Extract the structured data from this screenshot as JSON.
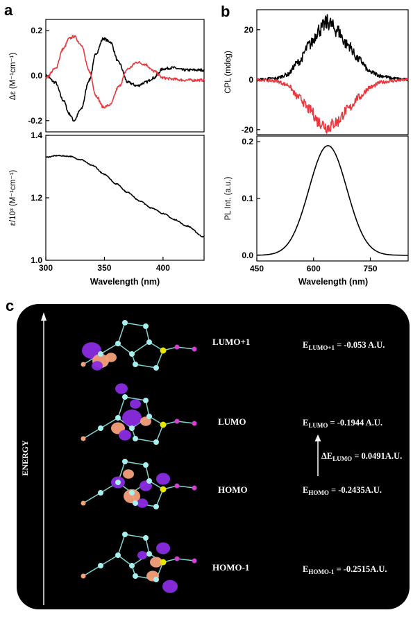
{
  "panels": {
    "a": "a",
    "b": "b",
    "c": "c"
  },
  "chart_data": [
    {
      "id": "cd",
      "type": "line",
      "ylabel": "Δε (M⁻¹cm⁻¹)",
      "xlim": [
        300,
        435
      ],
      "ylim": [
        -0.25,
        0.25
      ],
      "yticks": [
        "0.2",
        "0.0",
        "-0.2"
      ],
      "ytick_values": [
        0.2,
        0.0,
        -0.2
      ],
      "series": [
        {
          "color": "#000000",
          "x": [
            300,
            308,
            315,
            320,
            324,
            330,
            337,
            343,
            349,
            355,
            362,
            370,
            378,
            385,
            392,
            400,
            408,
            418,
            435
          ],
          "y": [
            0.0,
            -0.03,
            -0.11,
            -0.17,
            -0.2,
            -0.15,
            -0.02,
            0.1,
            0.165,
            0.15,
            0.06,
            -0.03,
            -0.045,
            -0.03,
            -0.01,
            0.03,
            0.035,
            0.025,
            0.025
          ]
        },
        {
          "color": "#e8383d",
          "x": [
            300,
            308,
            315,
            320,
            324,
            330,
            337,
            343,
            349,
            355,
            362,
            370,
            378,
            385,
            392,
            400,
            408,
            418,
            435
          ],
          "y": [
            -0.01,
            0.03,
            0.12,
            0.165,
            0.175,
            0.14,
            0.02,
            -0.09,
            -0.14,
            -0.13,
            -0.05,
            0.03,
            0.06,
            0.05,
            0.02,
            -0.01,
            -0.015,
            -0.02,
            -0.02
          ]
        }
      ]
    },
    {
      "id": "abs",
      "type": "line",
      "xlabel": "Wavelength (nm)",
      "ylabel": "ε/10³ (M⁻¹cm⁻¹)",
      "xlim": [
        300,
        435
      ],
      "ylim": [
        1.0,
        1.4
      ],
      "xticks": [
        "300",
        "350",
        "400"
      ],
      "xtick_values": [
        300,
        350,
        400
      ],
      "yticks": [
        "1.4",
        "1.2",
        "1.0"
      ],
      "ytick_values": [
        1.4,
        1.2,
        1.0
      ],
      "series": [
        {
          "color": "#000000",
          "x": [
            300,
            310,
            320,
            330,
            340,
            350,
            360,
            370,
            380,
            390,
            400,
            410,
            420,
            435
          ],
          "y": [
            1.33,
            1.335,
            1.333,
            1.322,
            1.303,
            1.275,
            1.245,
            1.217,
            1.19,
            1.168,
            1.15,
            1.13,
            1.11,
            1.075
          ]
        }
      ]
    },
    {
      "id": "cpl",
      "type": "line",
      "ylabel": "CPL (mdeg)",
      "xlim": [
        450,
        850
      ],
      "ylim": [
        -22,
        28
      ],
      "yticks": [
        "20",
        "0",
        "-20"
      ],
      "ytick_values": [
        20,
        0,
        -20
      ],
      "series": [
        {
          "color": "#000000",
          "x": [
            450,
            500,
            530,
            560,
            590,
            615,
            638,
            660,
            690,
            720,
            750,
            780,
            810,
            850
          ],
          "y": [
            0,
            0.5,
            2,
            7,
            14,
            20,
            23,
            20,
            14,
            8,
            3,
            1.5,
            0.5,
            0
          ]
        },
        {
          "color": "#e8383d",
          "x": [
            450,
            500,
            530,
            560,
            590,
            615,
            638,
            660,
            690,
            720,
            750,
            780,
            810,
            850
          ],
          "y": [
            0,
            -0.5,
            -2,
            -7,
            -12,
            -17,
            -19,
            -17,
            -12,
            -7,
            -3,
            -1,
            -0.5,
            0
          ]
        }
      ]
    },
    {
      "id": "pl",
      "type": "line",
      "xlabel": "Wavelength (nm)",
      "ylabel": "PL Int. (a.u.)",
      "xlim": [
        450,
        850
      ],
      "ylim": [
        -0.01,
        0.21
      ],
      "xticks": [
        "450",
        "600",
        "750"
      ],
      "xtick_values": [
        450,
        600,
        750
      ],
      "yticks": [
        "0.2",
        "0.1",
        "0.0"
      ],
      "ytick_values": [
        0.2,
        0.1,
        0.0
      ],
      "series": [
        {
          "color": "#000000",
          "gaussian": {
            "amp": 0.193,
            "mu": 638,
            "sigma": 50,
            "base": 0.0
          }
        }
      ]
    }
  ],
  "diagram": {
    "energy_label": "ENERGY",
    "levels": [
      {
        "name": "LUMO+1",
        "energy_prefix": "E",
        "energy_sub": "LUMO+1",
        "energy_value": " = -0.053 A.U."
      },
      {
        "name": "LUMO",
        "energy_prefix": "E",
        "energy_sub": "LUMO",
        "energy_value": " = -0.1944 A.U."
      },
      {
        "name": "HOMO",
        "energy_prefix": "E",
        "energy_sub": "HOMO",
        "energy_value": " = -0.2435A.U."
      },
      {
        "name": "HOMO-1",
        "energy_prefix": "E",
        "energy_sub": "HOMO-1",
        "energy_value": " = -0.2515A.U."
      }
    ],
    "gap": {
      "prefix": "ΔE",
      "sub": "LUMO",
      "value": " = 0.0491A.U."
    },
    "colors": {
      "background": "#000000",
      "lobe_purple": "#8a2be2",
      "lobe_orange": "#f4a07a",
      "atom_cyan": "#a8f0f0",
      "atom_magenta": "#d63fd6",
      "atom_yellow": "#e6e600"
    }
  }
}
